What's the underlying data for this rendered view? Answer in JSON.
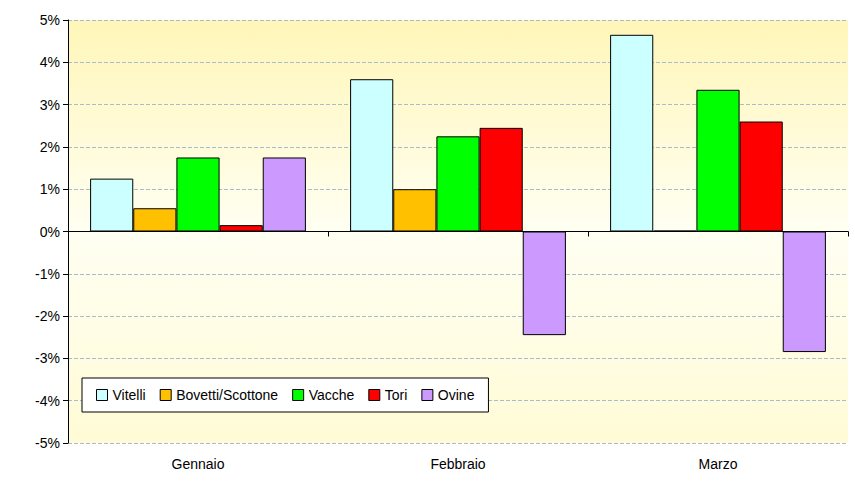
{
  "chart_data": {
    "type": "bar",
    "categories": [
      "Gennaio",
      "Febbraio",
      "Marzo"
    ],
    "series": [
      {
        "name": "Vitelli",
        "color": "#ccffff",
        "values": [
          1.25,
          3.6,
          4.65
        ]
      },
      {
        "name": "Bovetti/Scottone",
        "color": "#ffc000",
        "values": [
          0.55,
          1.0,
          0.02
        ]
      },
      {
        "name": "Vacche",
        "color": "#00ff00",
        "values": [
          1.75,
          2.25,
          3.35
        ]
      },
      {
        "name": "Tori",
        "color": "#ff0000",
        "values": [
          0.15,
          2.45,
          2.6
        ]
      },
      {
        "name": "Ovine",
        "color": "#cc99ff",
        "values": [
          1.75,
          -2.45,
          -2.85
        ]
      }
    ],
    "ylim": [
      -5,
      5
    ],
    "yticks": [
      {
        "value": -5,
        "label": "-5%"
      },
      {
        "value": -4,
        "label": "-4%"
      },
      {
        "value": -3,
        "label": "-3%"
      },
      {
        "value": -2,
        "label": "-2%"
      },
      {
        "value": -1,
        "label": "-1%"
      },
      {
        "value": 0,
        "label": "0%"
      },
      {
        "value": 1,
        "label": "1%"
      },
      {
        "value": 2,
        "label": "2%"
      },
      {
        "value": 3,
        "label": "3%"
      },
      {
        "value": 4,
        "label": "4%"
      },
      {
        "value": 5,
        "label": "5%"
      }
    ],
    "grid": true,
    "legend": "lower left"
  }
}
